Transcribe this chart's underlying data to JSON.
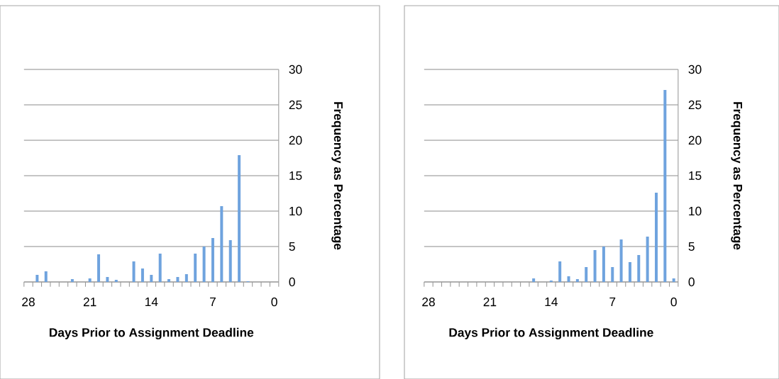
{
  "chart_data": [
    {
      "type": "bar",
      "categories": [
        "28",
        null,
        null,
        null,
        null,
        null,
        null,
        "21",
        null,
        null,
        null,
        null,
        null,
        null,
        "14",
        null,
        null,
        null,
        null,
        null,
        null,
        "7",
        null,
        null,
        null,
        null,
        null,
        null,
        "0"
      ],
      "values": [
        0,
        1.0,
        1.5,
        0,
        0,
        0.4,
        0,
        0.5,
        3.9,
        0.7,
        0.3,
        0,
        2.9,
        1.9,
        1.0,
        4.0,
        0.4,
        0.7,
        1.1,
        4.0,
        5.0,
        6.2,
        10.7,
        5.9,
        17.9,
        0.1,
        0,
        0,
        0
      ],
      "color": "#6fa3de",
      "xlabel": "Days Prior to Assignment Deadline",
      "ylabel": "Frequency as Percentage",
      "ylim": [
        0,
        30
      ],
      "yticks": [
        0,
        5,
        10,
        15,
        20,
        25,
        30
      ],
      "grid": "y"
    },
    {
      "type": "bar",
      "categories": [
        "28",
        null,
        null,
        null,
        null,
        null,
        null,
        "21",
        null,
        null,
        null,
        null,
        null,
        null,
        "14",
        null,
        null,
        null,
        null,
        null,
        null,
        "7",
        null,
        null,
        null,
        null,
        null,
        null,
        "0"
      ],
      "values": [
        0,
        0,
        0,
        0,
        0,
        0,
        0,
        0,
        0,
        0,
        0,
        0,
        0.5,
        0,
        0.2,
        2.9,
        0.8,
        0.4,
        2.1,
        4.5,
        5.0,
        2.1,
        6.0,
        2.8,
        3.8,
        6.4,
        12.6,
        27.1,
        0.5
      ],
      "color": "#6fa3de",
      "xlabel": "Days Prior to Assignment Deadline",
      "ylabel": "Frequency as Percentage",
      "ylim": [
        0,
        30
      ],
      "yticks": [
        0,
        5,
        10,
        15,
        20,
        25,
        30
      ],
      "grid": "y"
    }
  ]
}
